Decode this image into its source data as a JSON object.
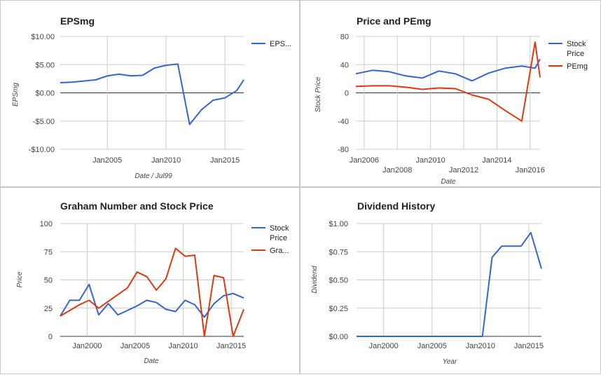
{
  "colors": {
    "blue": "#3366cc",
    "red": "#dc3912",
    "grid": "#cccccc",
    "zero": "#333333",
    "text": "#222222",
    "axisText": "#444444"
  },
  "chart_data": [
    {
      "id": "eps",
      "type": "line",
      "title": "EPSmg",
      "xlabel": "Date / Jul99",
      "ylabel": "EPSmg",
      "xlim": [
        2001.0,
        2016.6
      ],
      "ylim": [
        -10,
        10
      ],
      "yticks": [
        10,
        5,
        0,
        -5,
        -10
      ],
      "ytick_labels": [
        "$10.00",
        "$5.00",
        "$0.00",
        "-$5.00",
        "-$10.00"
      ],
      "xticks": [
        2005,
        2010,
        2015
      ],
      "xtick_labels": [
        "Jan2005",
        "Jan2010",
        "Jan2015"
      ],
      "legend": "right",
      "series": [
        {
          "name": "EPS...",
          "color": "#3366cc",
          "x": [
            2001.0,
            2002.0,
            2003.0,
            2004.0,
            2005.0,
            2006.0,
            2007.0,
            2008.0,
            2009.0,
            2010.0,
            2011.0,
            2012.0,
            2013.0,
            2014.0,
            2015.0,
            2016.0,
            2016.6
          ],
          "y": [
            1.8,
            1.9,
            2.1,
            2.3,
            3.0,
            3.3,
            3.0,
            3.1,
            4.4,
            4.9,
            5.1,
            -5.6,
            -3.0,
            -1.3,
            -0.9,
            0.4,
            2.3
          ]
        }
      ]
    },
    {
      "id": "price_pe",
      "type": "line",
      "title": "Price and PEmg",
      "xlabel": "Date",
      "ylabel": "Stock Price",
      "xlim": [
        2005.5,
        2016.6
      ],
      "ylim": [
        -80,
        80
      ],
      "yticks": [
        80,
        40,
        0,
        -40,
        -80
      ],
      "ytick_labels": [
        "80",
        "40",
        "0",
        "-40",
        "-80"
      ],
      "xticks": [
        2006,
        2008,
        2010,
        2012,
        2014,
        2016
      ],
      "xtick_labels": [
        "Jan2006",
        "Jan2008",
        "Jan2010",
        "Jan2012",
        "Jan2014",
        "Jan2016"
      ],
      "legend": "right",
      "series": [
        {
          "name": "Stock Price",
          "color": "#3366cc",
          "x": [
            2005.5,
            2006.5,
            2007.5,
            2008.5,
            2009.5,
            2010.5,
            2011.5,
            2012.5,
            2013.5,
            2014.5,
            2015.5,
            2016.3,
            2016.6
          ],
          "y": [
            27,
            32,
            30,
            24,
            21,
            31,
            27,
            17,
            28,
            35,
            38,
            35,
            48
          ]
        },
        {
          "name": "PEmg",
          "color": "#dc3912",
          "x": [
            2005.5,
            2006.5,
            2007.5,
            2008.5,
            2009.5,
            2010.5,
            2011.5,
            2012.5,
            2013.5,
            2014.5,
            2015.5,
            2016.3,
            2016.6
          ],
          "y": [
            9,
            10,
            10,
            8,
            5,
            7,
            6,
            -3,
            -9,
            -25,
            -40,
            72,
            22
          ]
        }
      ]
    },
    {
      "id": "graham",
      "type": "line",
      "title": "Graham Number and Stock Price",
      "xlabel": "Date",
      "ylabel": "Price",
      "xlim": [
        1997.2,
        2016.3
      ],
      "ylim": [
        0,
        100
      ],
      "yticks": [
        100,
        75,
        50,
        25,
        0
      ],
      "ytick_labels": [
        "100",
        "75",
        "50",
        "25",
        "0"
      ],
      "xticks": [
        2000,
        2005,
        2010,
        2015
      ],
      "xtick_labels": [
        "Jan2000",
        "Jan2005",
        "Jan2010",
        "Jan2015"
      ],
      "legend": "right",
      "series": [
        {
          "name": "Stock Price",
          "color": "#3366cc",
          "x": [
            1997.2,
            1998.2,
            1999.2,
            2000.2,
            2001.2,
            2002.2,
            2003.2,
            2004.2,
            2005.2,
            2006.2,
            2007.2,
            2008.2,
            2009.2,
            2010.2,
            2011.2,
            2012.2,
            2013.2,
            2014.2,
            2015.2,
            2016.3
          ],
          "y": [
            18,
            32,
            32,
            46,
            19,
            29,
            19,
            23,
            27,
            32,
            30,
            24,
            22,
            32,
            28,
            17,
            29,
            36,
            38,
            34
          ]
        },
        {
          "name": "Gra...",
          "color": "#dc3912",
          "x": [
            1997.2,
            1998.2,
            1999.2,
            2000.2,
            2001.2,
            2002.2,
            2003.2,
            2004.2,
            2005.2,
            2006.2,
            2007.2,
            2008.2,
            2009.2,
            2010.2,
            2011.2,
            2012.2,
            2013.2,
            2014.2,
            2015.2,
            2016.3
          ],
          "y": [
            18,
            23,
            28,
            32,
            25,
            31,
            37,
            43,
            57,
            53,
            41,
            51,
            78,
            71,
            72,
            0,
            54,
            52,
            0,
            24
          ]
        }
      ]
    },
    {
      "id": "dividend",
      "type": "line",
      "title": "Dividend History",
      "xlabel": "Year",
      "ylabel": "Dividend",
      "xlim": [
        1997.2,
        2016.3
      ],
      "ylim": [
        0,
        1
      ],
      "yticks": [
        1,
        0.75,
        0.5,
        0.25,
        0
      ],
      "ytick_labels": [
        "$1.00",
        "$0.75",
        "$0.50",
        "$0.25",
        "$0.00"
      ],
      "xticks": [
        2000,
        2005,
        2010,
        2015
      ],
      "xtick_labels": [
        "Jan2000",
        "Jan2005",
        "Jan2010",
        "Jan2015"
      ],
      "series": [
        {
          "name": "Dividend",
          "color": "#3366cc",
          "x": [
            1997.2,
            2010.2,
            2011.2,
            2012.2,
            2013.2,
            2014.2,
            2015.2,
            2016.3
          ],
          "y": [
            0,
            0,
            0.7,
            0.8,
            0.8,
            0.8,
            0.92,
            0.6
          ]
        }
      ]
    }
  ]
}
